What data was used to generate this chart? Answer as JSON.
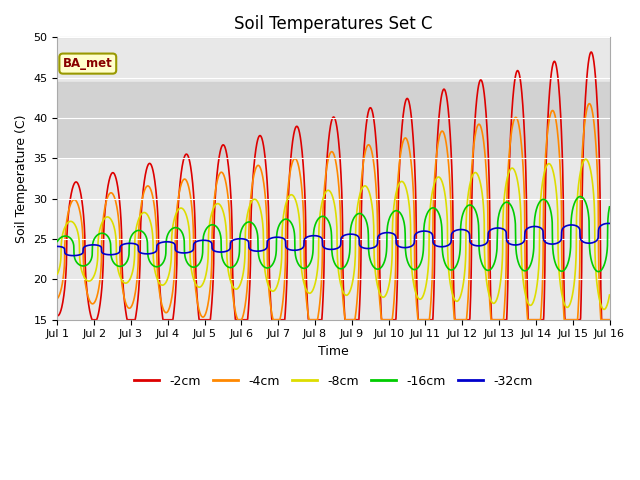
{
  "title": "Soil Temperatures Set C",
  "xlabel": "Time",
  "ylabel": "Soil Temperature (C)",
  "ylim": [
    15,
    50
  ],
  "yticks": [
    15,
    20,
    25,
    30,
    35,
    40,
    45,
    50
  ],
  "xlim": [
    0,
    15
  ],
  "xtick_labels": [
    "Jul 1",
    "Jul 2",
    "Jul 3",
    "Jul 4",
    "Jul 5",
    "Jul 6",
    "Jul 7",
    "Jul 8",
    "Jul 9",
    "Jul 10",
    "Jul 11",
    "Jul 12",
    "Jul 13",
    "Jul 14",
    "Jul 15",
    "Jul 16"
  ],
  "colors": {
    "-2cm": "#dd0000",
    "-4cm": "#ff8800",
    "-8cm": "#dddd00",
    "-16cm": "#00cc00",
    "-32cm": "#0000cc"
  },
  "legend_label": "BA_met",
  "bg_inner": "#e8e8e8",
  "bg_outer": "#ffffff",
  "shadeband_lo": 35,
  "shadeband_hi": 44.5,
  "shadeband_color": "#d0d0d0",
  "title_fontsize": 12,
  "axis_fontsize": 9,
  "tick_fontsize": 8,
  "legend_fontsize": 9
}
